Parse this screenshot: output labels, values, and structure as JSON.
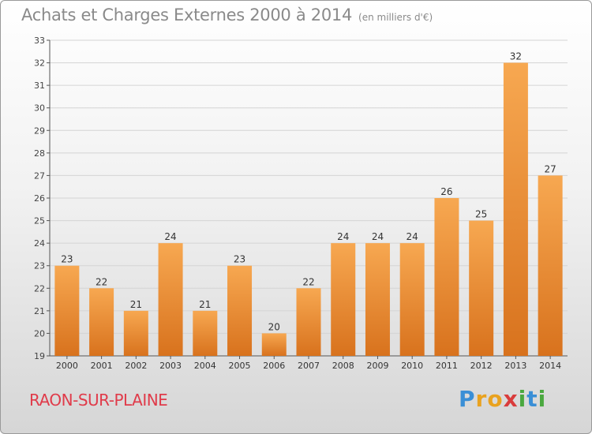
{
  "chart_data": {
    "type": "bar",
    "title": "Achats et Charges Externes 2000 à 2014",
    "subtitle": "(en milliers d'€)",
    "categories": [
      "2000",
      "2001",
      "2002",
      "2003",
      "2004",
      "2005",
      "2006",
      "2007",
      "2008",
      "2009",
      "2010",
      "2011",
      "2012",
      "2013",
      "2014"
    ],
    "values": [
      23,
      22,
      21,
      24,
      21,
      23,
      20,
      22,
      24,
      24,
      24,
      26,
      25,
      32,
      27
    ],
    "ylim": [
      19,
      33
    ],
    "yticks": [
      "19",
      "20",
      "21",
      "22",
      "23",
      "24",
      "25",
      "26",
      "27",
      "28",
      "29",
      "30",
      "31",
      "32",
      "33"
    ],
    "grid": true,
    "bar_color": "#f0963a"
  },
  "footer": {
    "city": "RAON-SUR-PLAINE",
    "logo_letters": [
      "P",
      "r",
      "o",
      "x",
      "i",
      "t",
      "i"
    ],
    "logo_colors": [
      "#3a8fd6",
      "#e9a21f",
      "#e9a21f",
      "#d93c3c",
      "#4aa83f",
      "#3a8fd6",
      "#4aa83f"
    ]
  }
}
